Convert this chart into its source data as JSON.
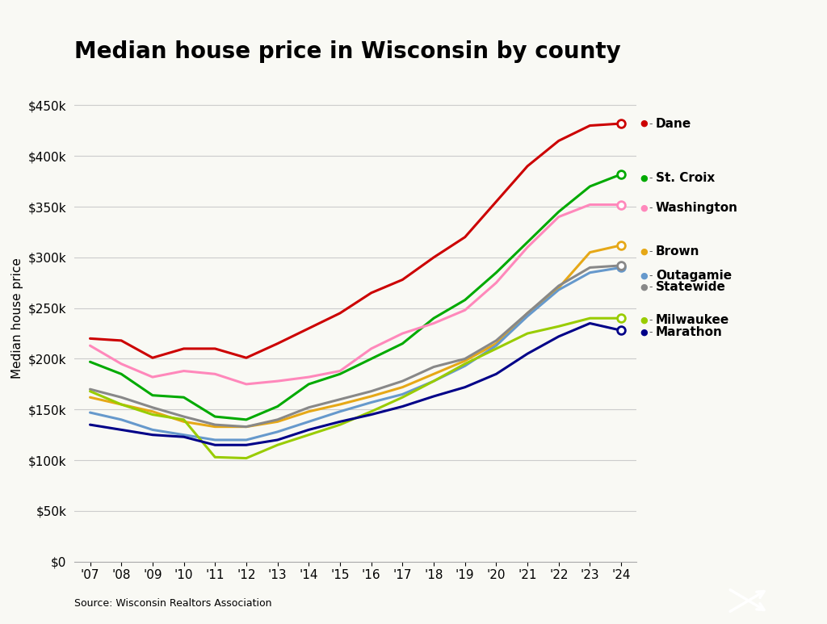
{
  "title": "Median house price in Wisconsin by county",
  "ylabel": "Median house price",
  "source": "Source: Wisconsin Realtors Association",
  "years": [
    2007,
    2008,
    2009,
    2010,
    2011,
    2012,
    2013,
    2014,
    2015,
    2016,
    2017,
    2018,
    2019,
    2020,
    2021,
    2022,
    2023,
    2024
  ],
  "series": [
    {
      "name": "Dane",
      "color": "#cc0000",
      "values": [
        220000,
        218000,
        201000,
        210000,
        210000,
        201000,
        215000,
        230000,
        245000,
        265000,
        278000,
        300000,
        320000,
        355000,
        390000,
        415000,
        430000,
        432000
      ]
    },
    {
      "name": "St. Croix",
      "color": "#00aa00",
      "values": [
        197000,
        185000,
        164000,
        162000,
        143000,
        140000,
        153000,
        175000,
        185000,
        200000,
        215000,
        240000,
        258000,
        285000,
        315000,
        345000,
        370000,
        382000
      ]
    },
    {
      "name": "Washington",
      "color": "#ff88bb",
      "values": [
        213000,
        195000,
        182000,
        188000,
        185000,
        175000,
        178000,
        182000,
        188000,
        210000,
        225000,
        235000,
        248000,
        275000,
        310000,
        340000,
        352000,
        352000
      ]
    },
    {
      "name": "Brown",
      "color": "#e6a817",
      "values": [
        162000,
        155000,
        148000,
        138000,
        133000,
        133000,
        138000,
        148000,
        155000,
        163000,
        172000,
        185000,
        198000,
        215000,
        245000,
        270000,
        305000,
        312000
      ]
    },
    {
      "name": "Outagamie",
      "color": "#6699cc",
      "values": [
        147000,
        140000,
        130000,
        125000,
        120000,
        120000,
        128000,
        138000,
        148000,
        157000,
        165000,
        178000,
        193000,
        213000,
        242000,
        268000,
        285000,
        290000
      ]
    },
    {
      "name": "Statewide",
      "color": "#888888",
      "values": [
        170000,
        162000,
        152000,
        143000,
        135000,
        133000,
        140000,
        152000,
        160000,
        168000,
        178000,
        192000,
        200000,
        218000,
        245000,
        272000,
        290000,
        292000
      ]
    },
    {
      "name": "Milwaukee",
      "color": "#99cc00",
      "values": [
        168000,
        155000,
        145000,
        140000,
        103000,
        102000,
        115000,
        125000,
        135000,
        148000,
        162000,
        178000,
        195000,
        210000,
        225000,
        232000,
        240000,
        240000
      ]
    },
    {
      "name": "Marathon",
      "color": "#000088",
      "values": [
        135000,
        130000,
        125000,
        123000,
        115000,
        115000,
        120000,
        130000,
        138000,
        145000,
        153000,
        163000,
        172000,
        185000,
        205000,
        222000,
        235000,
        228000
      ]
    }
  ],
  "label_y_positions": {
    "Dane": 432000,
    "St. Croix": 378000,
    "Washington": 349000,
    "Brown": 306000,
    "Outagamie": 282000,
    "Statewide": 271000,
    "Milwaukee": 238000,
    "Marathon": 226000
  },
  "ylim": [
    0,
    480000
  ],
  "yticks": [
    0,
    50000,
    100000,
    150000,
    200000,
    250000,
    300000,
    350000,
    400000,
    450000
  ],
  "background_color": "#f9f9f4",
  "grid_color": "#cccccc",
  "title_fontsize": 20,
  "label_fontsize": 11,
  "tick_fontsize": 11
}
